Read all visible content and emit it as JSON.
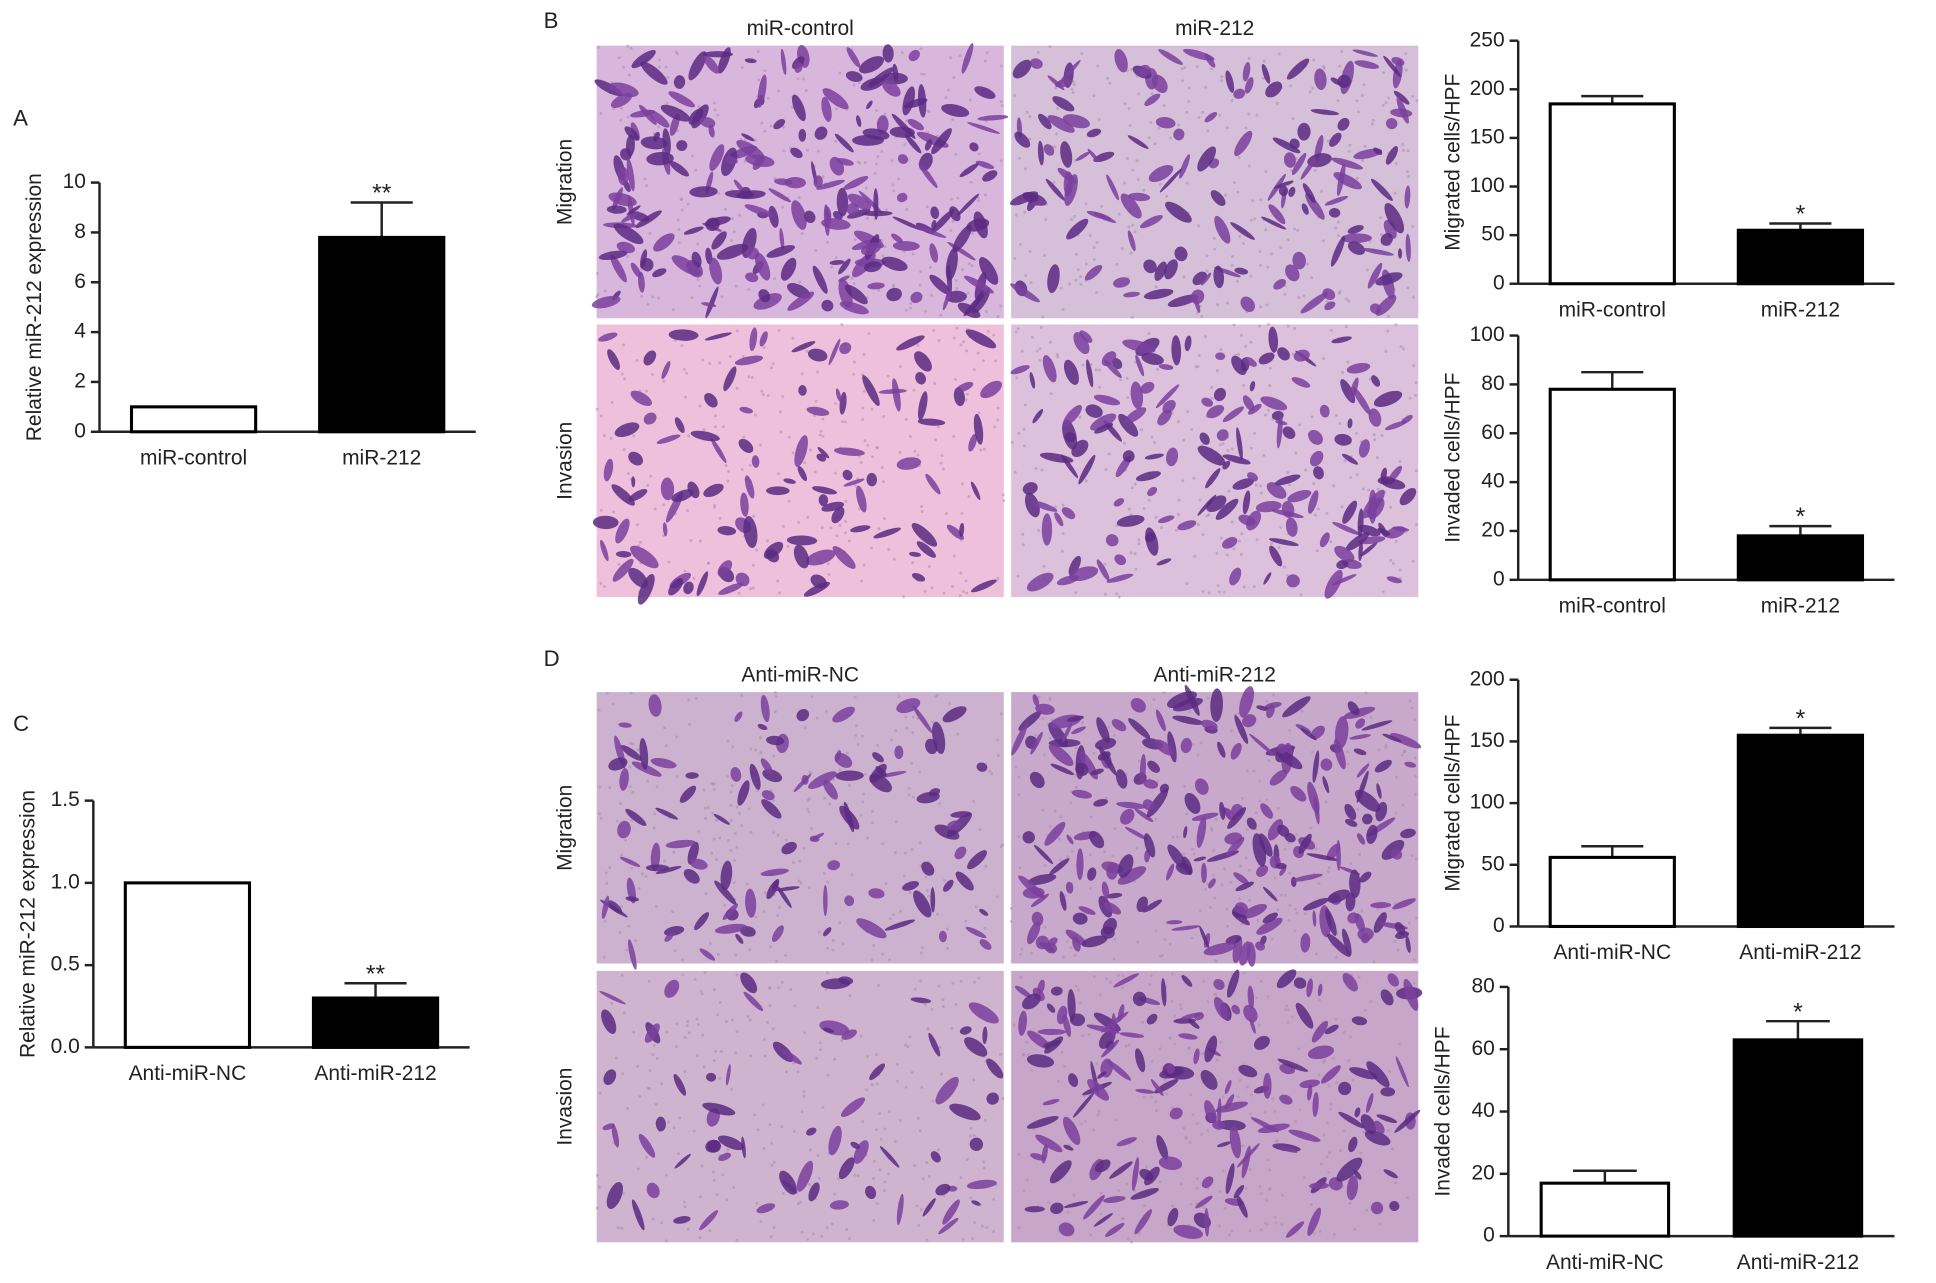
{
  "panels": [
    "A",
    "B",
    "C",
    "D"
  ],
  "micrographs": [
    {
      "columns": [
        "miR-control",
        "miR-212"
      ],
      "rows": [
        "Migration",
        "Invasion"
      ]
    },
    {
      "columns": [
        "Anti-miR-NC",
        "Anti-miR-212"
      ],
      "rows": [
        "Migration",
        "Invasion"
      ]
    }
  ],
  "chart_data": [
    {
      "type": "bar",
      "ylabel": "Relative miR-212 expression",
      "categories": [
        "miR-control",
        "miR-212"
      ],
      "values": [
        1,
        7.8
      ],
      "errors": [
        0,
        1.4
      ],
      "significance": [
        null,
        "**"
      ],
      "colors": [
        "#ffffff",
        "#000000"
      ],
      "ylim": [
        0,
        10
      ],
      "yticks": [
        0,
        2,
        4,
        6,
        8,
        10
      ]
    },
    {
      "type": "bar",
      "ylabel": "Migrated cells/HPF",
      "categories": [
        "miR-control",
        "miR-212"
      ],
      "values": [
        185,
        55
      ],
      "errors": [
        8,
        7
      ],
      "significance": [
        null,
        "*"
      ],
      "colors": [
        "#ffffff",
        "#000000"
      ],
      "ylim": [
        0,
        250
      ],
      "yticks": [
        0,
        50,
        100,
        150,
        200,
        250
      ]
    },
    {
      "type": "bar",
      "ylabel": "Invaded cells/HPF",
      "categories": [
        "miR-control",
        "miR-212"
      ],
      "values": [
        78,
        18
      ],
      "errors": [
        7,
        4
      ],
      "significance": [
        null,
        "*"
      ],
      "colors": [
        "#ffffff",
        "#000000"
      ],
      "ylim": [
        0,
        100
      ],
      "yticks": [
        0,
        20,
        40,
        60,
        80,
        100
      ]
    },
    {
      "type": "bar",
      "ylabel": "Relative miR-212 expression",
      "categories": [
        "Anti-miR-NC",
        "Anti-miR-212"
      ],
      "values": [
        1.0,
        0.3
      ],
      "errors": [
        0,
        0.09
      ],
      "significance": [
        null,
        "**"
      ],
      "colors": [
        "#ffffff",
        "#000000"
      ],
      "ylim": [
        0,
        1.5
      ],
      "yticks": [
        {
          "value": 0,
          "label": "0.0"
        },
        0.5,
        {
          "value": 1,
          "label": "1.0"
        },
        1.5
      ]
    },
    {
      "type": "bar",
      "ylabel": "Migrated cells/HPF",
      "categories": [
        "Anti-miR-NC",
        "Anti-miR-212"
      ],
      "values": [
        56,
        155
      ],
      "errors": [
        9,
        6
      ],
      "significance": [
        null,
        "*"
      ],
      "colors": [
        "#ffffff",
        "#000000"
      ],
      "ylim": [
        0,
        200
      ],
      "yticks": [
        0,
        50,
        100,
        150,
        200
      ]
    },
    {
      "type": "bar",
      "ylabel": "Invaded cells/HPF",
      "categories": [
        "Anti-miR-NC",
        "Anti-miR-212"
      ],
      "values": [
        17,
        63
      ],
      "errors": [
        4,
        6
      ],
      "significance": [
        null,
        "*"
      ],
      "colors": [
        "#ffffff",
        "#000000"
      ],
      "ylim": [
        0,
        80
      ],
      "yticks": [
        0,
        20,
        40,
        60,
        80
      ]
    }
  ]
}
